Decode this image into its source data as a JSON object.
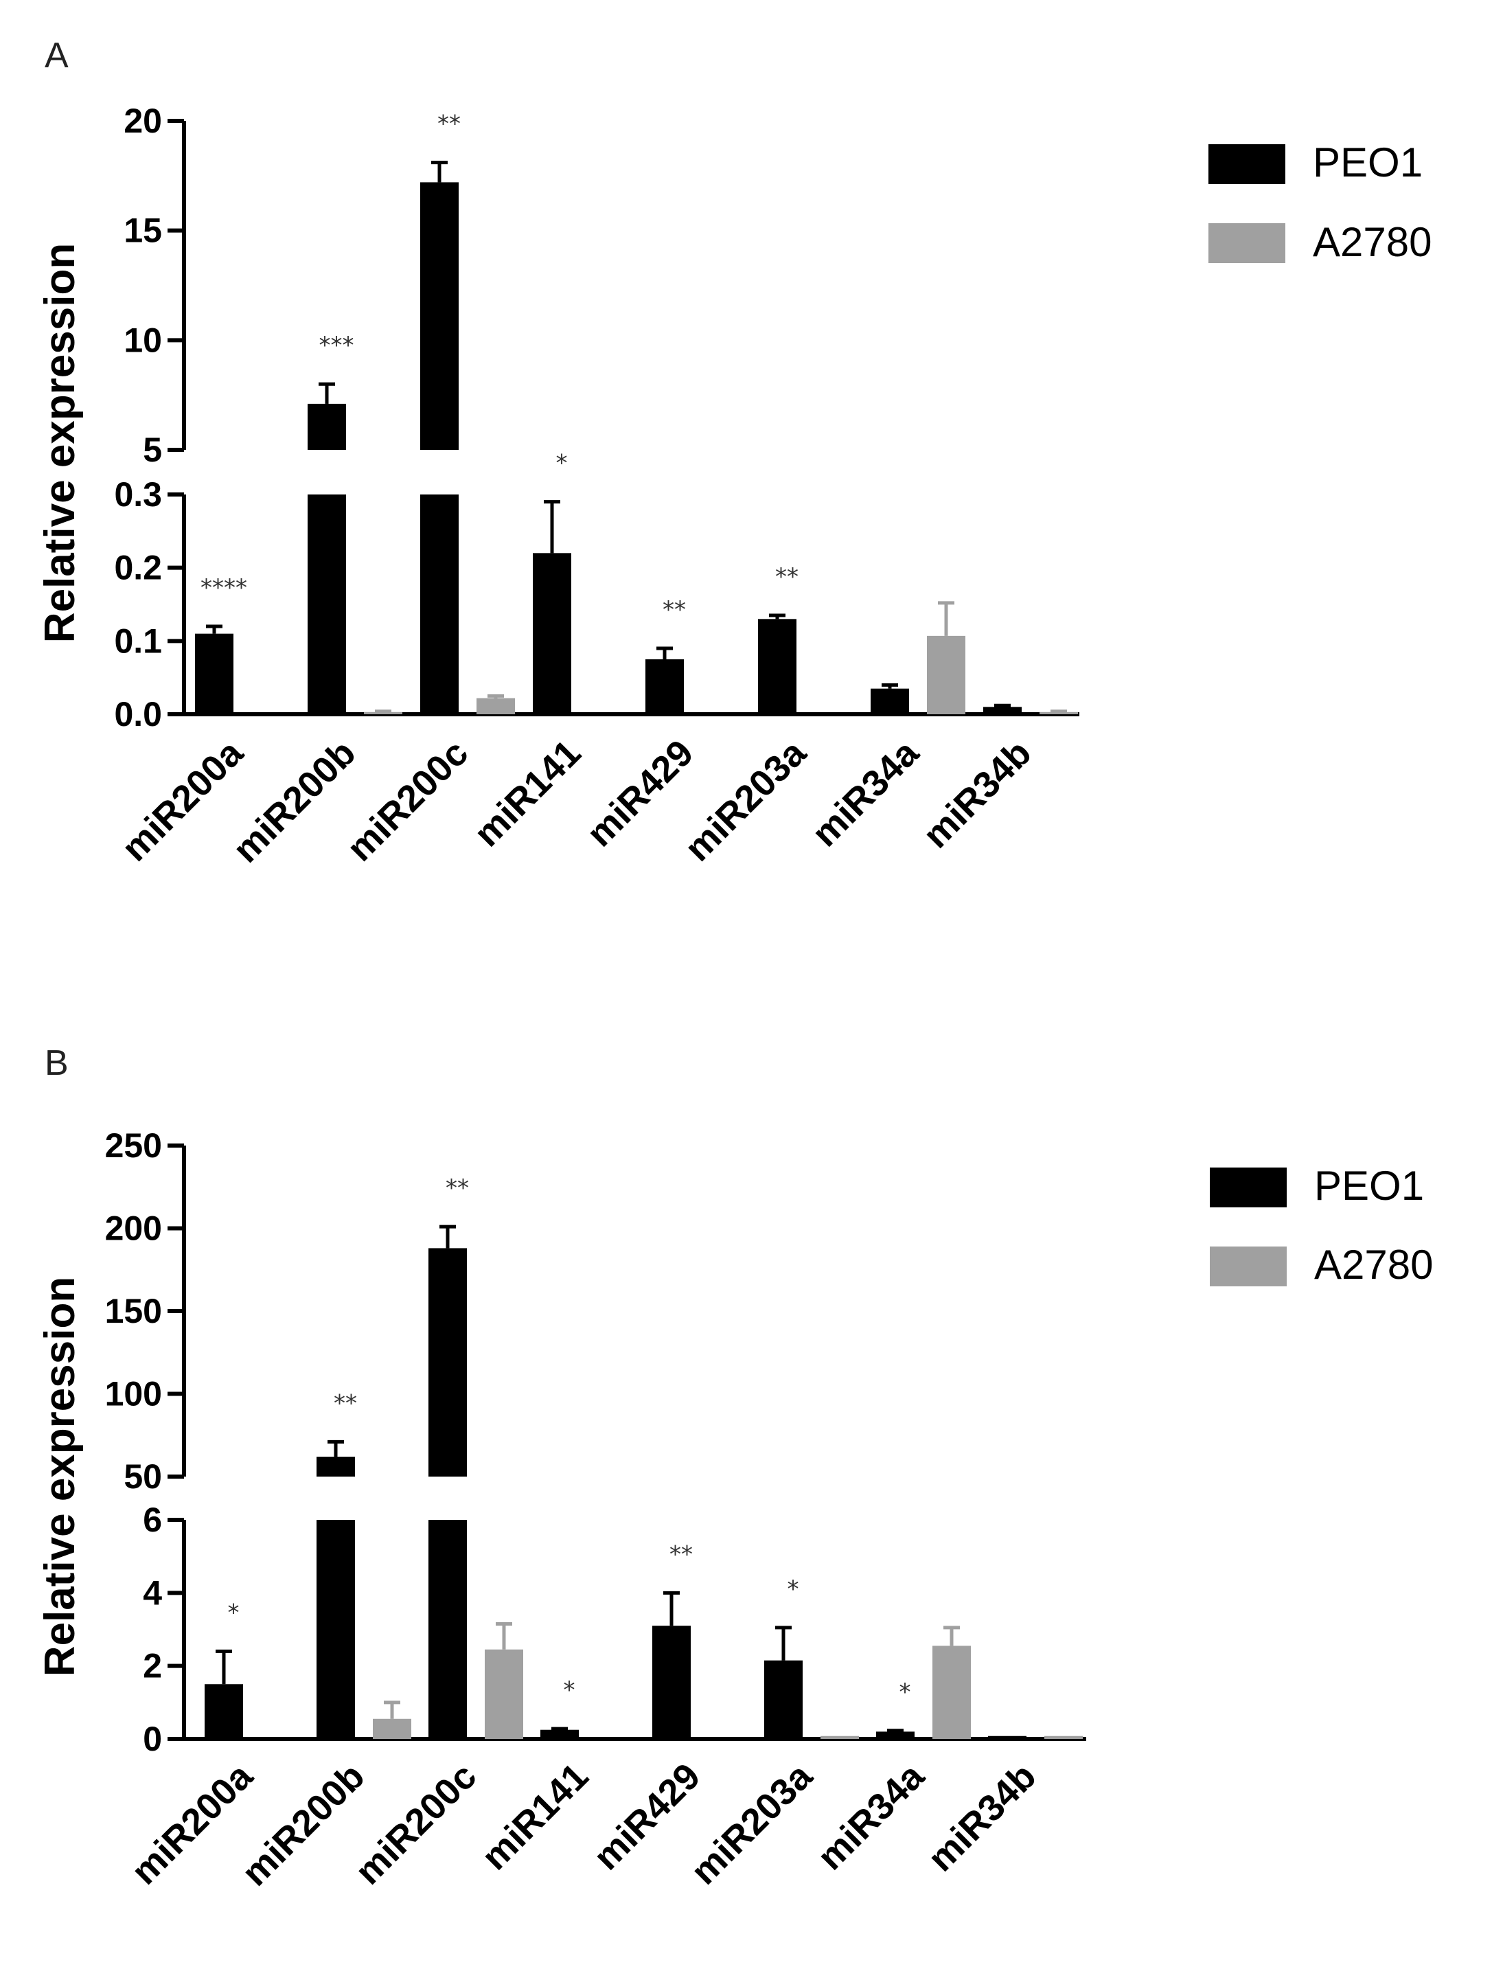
{
  "chart_data": [
    {
      "panel": "A",
      "type": "bar",
      "ylabel": "Relative expression",
      "categories": [
        "miR200a",
        "miR200b",
        "miR200c",
        "miR141",
        "miR429",
        "miR203a",
        "miR34a",
        "miR34b"
      ],
      "series": [
        {
          "name": "PEO1",
          "color": "#000000",
          "values": [
            0.11,
            7.1,
            17.2,
            0.22,
            0.075,
            0.13,
            0.035,
            0.01
          ],
          "errors": [
            0.01,
            0.9,
            0.9,
            0.07,
            0.015,
            0.005,
            0.005,
            0.002
          ]
        },
        {
          "name": "A2780",
          "color": "#a0a0a0",
          "values": [
            0.0,
            0.003,
            0.022,
            0.0,
            0.0,
            0.0,
            0.107,
            0.003
          ],
          "errors": [
            0,
            0.001,
            0.003,
            0,
            0,
            0,
            0.045,
            0.001
          ]
        }
      ],
      "significance": [
        "****",
        "***",
        "**",
        "*",
        "**",
        "**",
        "",
        ""
      ],
      "axis_lower": {
        "range": [
          0,
          0.3
        ],
        "ticks": [
          0.0,
          0.1,
          0.2,
          0.3
        ],
        "tick_labels": [
          "0.0",
          "0.1",
          "0.2",
          "0.3"
        ]
      },
      "axis_upper": {
        "range": [
          5,
          20
        ],
        "ticks": [
          5,
          10,
          15,
          20
        ],
        "tick_labels": [
          "5",
          "10",
          "15",
          "20"
        ]
      }
    },
    {
      "panel": "B",
      "type": "bar",
      "ylabel": "Relative expression",
      "categories": [
        "miR200a",
        "miR200b",
        "miR200c",
        "miR141",
        "miR429",
        "miR203a",
        "miR34a",
        "miR34b"
      ],
      "series": [
        {
          "name": "PEO1",
          "color": "#000000",
          "values": [
            1.5,
            62,
            188,
            0.25,
            3.1,
            2.15,
            0.2,
            0.08
          ],
          "errors": [
            0.9,
            9,
            13,
            0.03,
            0.9,
            0.9,
            0.03,
            0.01
          ]
        },
        {
          "name": "A2780",
          "color": "#a0a0a0",
          "values": [
            0.0,
            0.55,
            2.45,
            0.0,
            0.0,
            0.08,
            2.55,
            0.08
          ],
          "errors": [
            0,
            0.45,
            0.7,
            0,
            0,
            0.01,
            0.5,
            0.01
          ]
        }
      ],
      "significance": [
        "*",
        "**",
        "**",
        "*",
        "**",
        "*",
        "*",
        ""
      ],
      "axis_lower": {
        "range": [
          0,
          6
        ],
        "ticks": [
          0,
          2,
          4,
          6
        ],
        "tick_labels": [
          "0",
          "2",
          "4",
          "6"
        ]
      },
      "axis_upper": {
        "range": [
          50,
          250
        ],
        "ticks": [
          50,
          100,
          150,
          200,
          250
        ],
        "tick_labels": [
          "50",
          "100",
          "150",
          "200",
          "250"
        ]
      }
    }
  ],
  "legend": [
    {
      "label": "PEO1",
      "color": "#000000"
    },
    {
      "label": "A2780",
      "color": "#a0a0a0"
    }
  ]
}
